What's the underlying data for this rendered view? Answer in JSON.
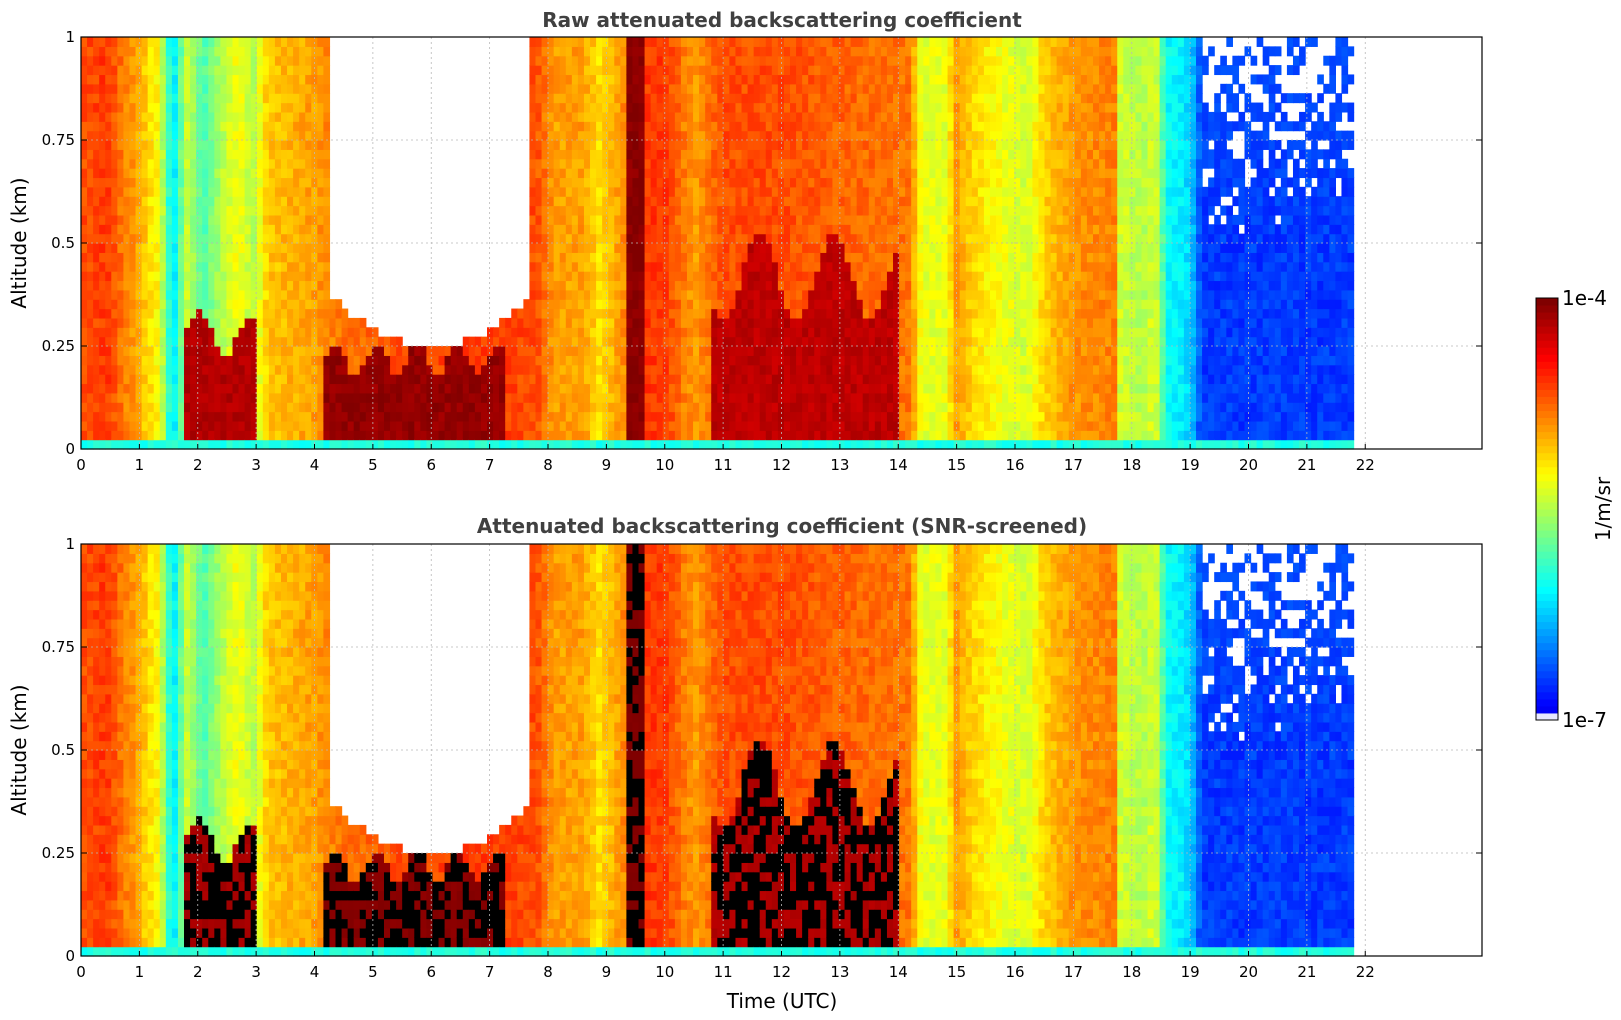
{
  "chart_data": [
    {
      "type": "heatmap",
      "title": "Raw attenuated backscattering coefficient",
      "xlabel": "",
      "ylabel": "Altitude (km)",
      "xlim": [
        0,
        24
      ],
      "ylim": [
        0,
        1
      ],
      "xticks": [
        "0",
        "1",
        "2",
        "3",
        "4",
        "5",
        "6",
        "7",
        "8",
        "9",
        "10",
        "11",
        "12",
        "13",
        "14",
        "15",
        "16",
        "17",
        "18",
        "19",
        "20",
        "21",
        "22"
      ],
      "yticks": [
        "0",
        "0.25",
        "0.5",
        "0.75",
        "1"
      ],
      "grid": true,
      "screened": false,
      "data_end_hour": 21.8
    },
    {
      "type": "heatmap",
      "title": "Attenuated backscattering coefficient (SNR-screened)",
      "xlabel": "Time (UTC)",
      "ylabel": "Altitude (km)",
      "xlim": [
        0,
        24
      ],
      "ylim": [
        0,
        1
      ],
      "xticks": [
        "0",
        "1",
        "2",
        "3",
        "4",
        "5",
        "6",
        "7",
        "8",
        "9",
        "10",
        "11",
        "12",
        "13",
        "14",
        "15",
        "16",
        "17",
        "18",
        "19",
        "20",
        "21",
        "22"
      ],
      "yticks": [
        "0",
        "0.25",
        "0.5",
        "0.75",
        "1"
      ],
      "grid": true,
      "screened": true,
      "data_end_hour": 21.8
    }
  ],
  "colorbar": {
    "label": "1/m/sr",
    "max_label": "1e-4",
    "min_label": "1e-7",
    "colormap": "jet",
    "scale": "log"
  }
}
